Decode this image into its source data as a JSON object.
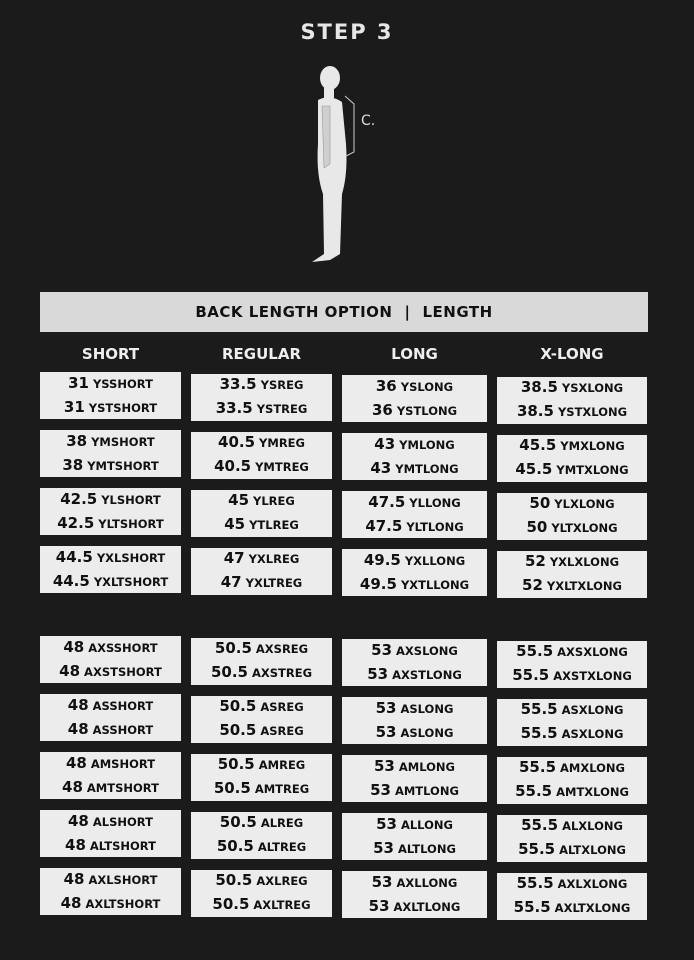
{
  "title": "STEP 3",
  "figure_label": "C.",
  "header": {
    "left": "BACK LENGTH OPTION",
    "separator": "|",
    "right": "LENGTH"
  },
  "columns": [
    "SHORT",
    "REGULAR",
    "LONG",
    "X-LONG"
  ],
  "youth_rows": [
    [
      [
        [
          "31",
          "YSSHORT"
        ],
        [
          "31",
          "YSTSHORT"
        ]
      ],
      [
        [
          "33.5",
          "YSREG"
        ],
        [
          "33.5",
          "YSTREG"
        ]
      ],
      [
        [
          "36",
          "YSLONG"
        ],
        [
          "36",
          "YSTLONG"
        ]
      ],
      [
        [
          "38.5",
          "YSXLONG"
        ],
        [
          "38.5",
          "YSTXLONG"
        ]
      ]
    ],
    [
      [
        [
          "38",
          "YMSHORT"
        ],
        [
          "38",
          "YMTSHORT"
        ]
      ],
      [
        [
          "40.5",
          "YMREG"
        ],
        [
          "40.5",
          "YMTREG"
        ]
      ],
      [
        [
          "43",
          "YMLONG"
        ],
        [
          "43",
          "YMTLONG"
        ]
      ],
      [
        [
          "45.5",
          "YMXLONG"
        ],
        [
          "45.5",
          "YMTXLONG"
        ]
      ]
    ],
    [
      [
        [
          "42.5",
          "YLSHORT"
        ],
        [
          "42.5",
          "YLTSHORT"
        ]
      ],
      [
        [
          "45",
          "YLREG"
        ],
        [
          "45",
          "YTLREG"
        ]
      ],
      [
        [
          "47.5",
          "YLLONG"
        ],
        [
          "47.5",
          "YLTLONG"
        ]
      ],
      [
        [
          "50",
          "YLXLONG"
        ],
        [
          "50",
          "YLTXLONG"
        ]
      ]
    ],
    [
      [
        [
          "44.5",
          "YXLSHORT"
        ],
        [
          "44.5",
          "YXLTSHORT"
        ]
      ],
      [
        [
          "47",
          "YXLREG"
        ],
        [
          "47",
          "YXLTREG"
        ]
      ],
      [
        [
          "49.5",
          "YXLLONG"
        ],
        [
          "49.5",
          "YXTLLONG"
        ]
      ],
      [
        [
          "52",
          "YXLXLONG"
        ],
        [
          "52",
          "YXLTXLONG"
        ]
      ]
    ]
  ],
  "adult_rows": [
    [
      [
        [
          "48",
          "AXSSHORT"
        ],
        [
          "48",
          "AXSTSHORT"
        ]
      ],
      [
        [
          "50.5",
          "AXSREG"
        ],
        [
          "50.5",
          "AXSTREG"
        ]
      ],
      [
        [
          "53",
          "AXSLONG"
        ],
        [
          "53",
          "AXSTLONG"
        ]
      ],
      [
        [
          "55.5",
          "AXSXLONG"
        ],
        [
          "55.5",
          "AXSTXLONG"
        ]
      ]
    ],
    [
      [
        [
          "48",
          "ASSHORT"
        ],
        [
          "48",
          "ASSHORT"
        ]
      ],
      [
        [
          "50.5",
          "ASREG"
        ],
        [
          "50.5",
          "ASREG"
        ]
      ],
      [
        [
          "53",
          "ASLONG"
        ],
        [
          "53",
          "ASLONG"
        ]
      ],
      [
        [
          "55.5",
          "ASXLONG"
        ],
        [
          "55.5",
          "ASXLONG"
        ]
      ]
    ],
    [
      [
        [
          "48",
          "AMSHORT"
        ],
        [
          "48",
          "AMTSHORT"
        ]
      ],
      [
        [
          "50.5",
          "AMREG"
        ],
        [
          "50.5",
          "AMTREG"
        ]
      ],
      [
        [
          "53",
          "AMLONG"
        ],
        [
          "53",
          "AMTLONG"
        ]
      ],
      [
        [
          "55.5",
          "AMXLONG"
        ],
        [
          "55.5",
          "AMTXLONG"
        ]
      ]
    ],
    [
      [
        [
          "48",
          "ALSHORT"
        ],
        [
          "48",
          "ALTSHORT"
        ]
      ],
      [
        [
          "50.5",
          "ALREG"
        ],
        [
          "50.5",
          "ALTREG"
        ]
      ],
      [
        [
          "53",
          "ALLONG"
        ],
        [
          "53",
          "ALTLONG"
        ]
      ],
      [
        [
          "55.5",
          "ALXLONG"
        ],
        [
          "55.5",
          "ALTXLONG"
        ]
      ]
    ],
    [
      [
        [
          "48",
          "AXLSHORT"
        ],
        [
          "48",
          "AXLTSHORT"
        ]
      ],
      [
        [
          "50.5",
          "AXLREG"
        ],
        [
          "50.5",
          "AXLTREG"
        ]
      ],
      [
        [
          "53",
          "AXLLONG"
        ],
        [
          "53",
          "AXLTLONG"
        ]
      ],
      [
        [
          "55.5",
          "AXLXLONG"
        ],
        [
          "55.5",
          "AXLTXLONG"
        ]
      ]
    ]
  ]
}
